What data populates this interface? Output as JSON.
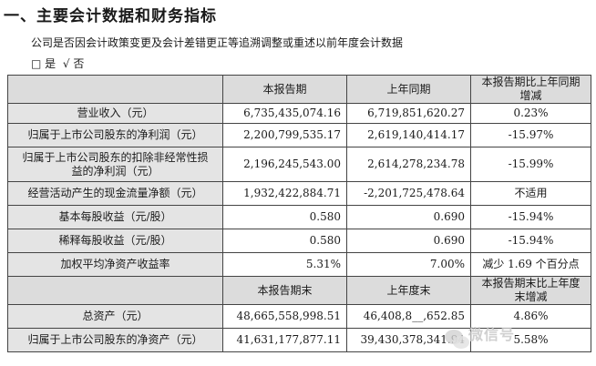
{
  "heading": "一、主要会计数据和财务指标",
  "question": "公司是否因会计政策变更及会计差错更正等追溯调整或重述以前年度会计数据",
  "options": {
    "yes_box": "□",
    "yes_label": "是",
    "no_check": "√",
    "no_label": "否"
  },
  "table1": {
    "headers": [
      "",
      "本报告期",
      "上年同期",
      "本报告期比上年同期增减"
    ],
    "rows": [
      {
        "label": "营业收入（元）",
        "current": "6,735,435,074.16",
        "prior": "6,719,851,620.27",
        "change": "0.23%"
      },
      {
        "label": "归属于上市公司股东的净利润（元）",
        "current": "2,200,799,535.17",
        "prior": "2,619,140,414.17",
        "change": "-15.97%"
      },
      {
        "label_line1": "归属于上市公司股东的扣除非经常性损",
        "label_line2": "益的净利润（元）",
        "current": "2,196,245,543.00",
        "prior": "2,614,278,234.78",
        "change": "-15.99%"
      },
      {
        "label": "经营活动产生的现金流量净额（元）",
        "current": "1,932,422,884.71",
        "prior": "-2,201,725,478.64",
        "change": "不适用"
      },
      {
        "label": "基本每股收益（元/股）",
        "current": "0.580",
        "prior": "0.690",
        "change": "-15.94%"
      },
      {
        "label": "稀释每股收益（元/股）",
        "current": "0.580",
        "prior": "0.690",
        "change": "-15.94%"
      },
      {
        "label": "加权平均净资产收益率",
        "current": "5.31%",
        "prior": "7.00%",
        "change": "减少 1.69 个百分点"
      }
    ]
  },
  "table2": {
    "headers": [
      "",
      "本报告期末",
      "上年度末",
      "本报告期末比上年度末增减"
    ],
    "rows": [
      {
        "label": "总资产（元）",
        "current": "48,665,558,998.51",
        "prior": "46,408,8__,652.85",
        "change": "4.86%"
      },
      {
        "label": "归属于上市公司股东的净资产（元）",
        "current": "41,631,177,877.11",
        "prior": "39,430,378,341.94",
        "change": "5.58%"
      }
    ]
  },
  "watermark": {
    "text": "微信号",
    "icon": "wechat-icon"
  }
}
